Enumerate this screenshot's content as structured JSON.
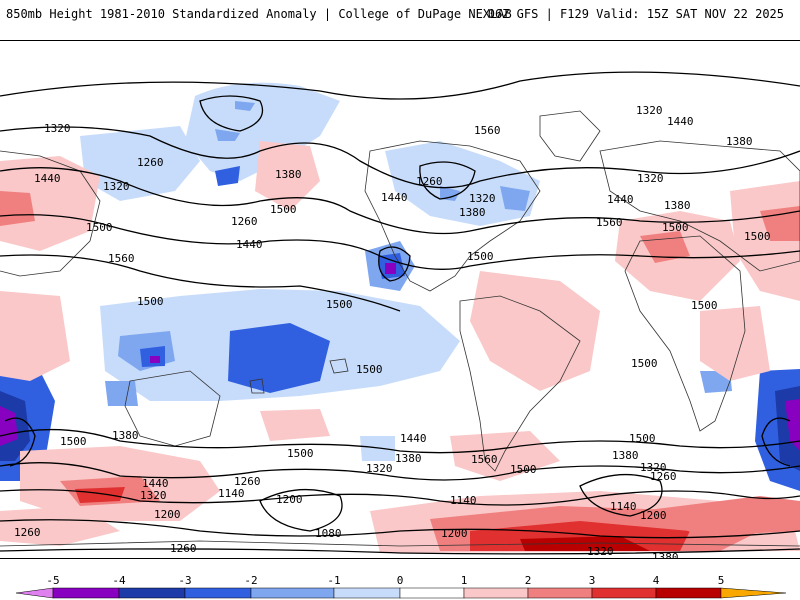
{
  "header": {
    "title": "850mb Height 1981-2010 Standardized Anomaly | College of DuPage NEXLAB",
    "run_info": "06Z GFS | F129 Valid: 15Z SAT NOV 22 2025"
  },
  "legend": {
    "ticks": [
      "-5",
      "-4",
      "-3",
      "-2",
      "-1",
      "0",
      "1",
      "2",
      "3",
      "4",
      "5"
    ],
    "colors": [
      "#e080f0",
      "#8800c0",
      "#1c3aa8",
      "#3060e0",
      "#7fa7f0",
      "#c7dcfa",
      "#ffffff",
      "#fac8c8",
      "#f08080",
      "#e03030",
      "#b80000",
      "#f8a800"
    ]
  },
  "contours": {
    "labels": [
      "1320",
      "1440",
      "1500",
      "1260",
      "1320",
      "1380",
      "1500",
      "1260",
      "1440",
      "1560",
      "1500",
      "1440",
      "1380",
      "1320",
      "1260",
      "1500",
      "1320",
      "1380",
      "1440",
      "1500",
      "1560",
      "1320",
      "1440",
      "1500",
      "1560",
      "1380",
      "1500",
      "1500",
      "1500",
      "1500",
      "1380",
      "1440",
      "1500",
      "1320",
      "1200",
      "1260",
      "1140",
      "1200",
      "1080",
      "1200",
      "1140",
      "1260",
      "1320",
      "1380",
      "1440",
      "1500",
      "1320",
      "1260",
      "1140",
      "1200",
      "1260",
      "1320",
      "1380",
      "1560",
      "1500",
      "1320",
      "1380",
      "1260",
      "1500"
    ]
  },
  "colors": {
    "positive_light": "#fac8c8",
    "positive_mid": "#f08080",
    "positive_strong": "#e03030",
    "negative_light": "#c7dcfa",
    "negative_mid": "#7fa7f0",
    "negative_strong": "#3060e0",
    "negative_deep": "#1c3aa8",
    "negative_extreme": "#8800c0"
  }
}
